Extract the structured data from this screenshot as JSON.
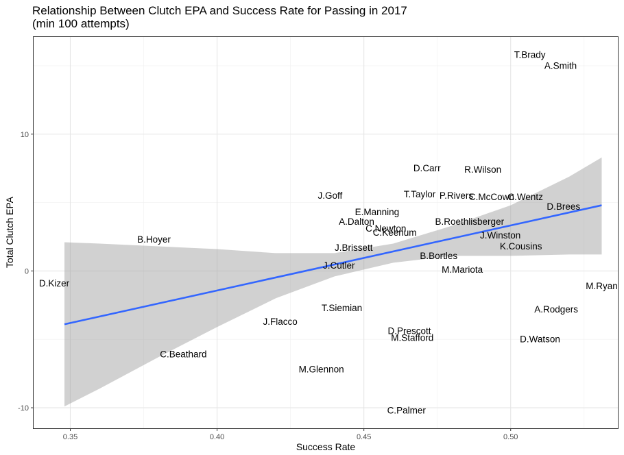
{
  "chart_data": {
    "type": "scatter",
    "title": "Relationship Between Clutch EPA and Success Rate for Passing in 2017",
    "subtitle": "(min 100 attempts)",
    "xlabel": "Success Rate",
    "ylabel": "Total Clutch EPA",
    "xlim": [
      0.3375,
      0.5365
    ],
    "ylim": [
      -11.5,
      17.1
    ],
    "x_ticks": [
      0.35,
      0.4,
      0.45,
      0.5
    ],
    "x_tick_labels": [
      "0.35",
      "0.40",
      "0.45",
      "0.50"
    ],
    "y_ticks": [
      -10,
      0,
      10
    ],
    "y_tick_labels": [
      "-10",
      "0",
      "10"
    ],
    "grid": true,
    "legend": "none",
    "point_marker": "text label",
    "points": [
      {
        "label": "T.Brady",
        "x": 0.5065,
        "y": 15.8
      },
      {
        "label": "A.Smith",
        "x": 0.517,
        "y": 15.0
      },
      {
        "label": "R.Wilson",
        "x": 0.4905,
        "y": 7.4
      },
      {
        "label": "D.Carr",
        "x": 0.4715,
        "y": 7.5
      },
      {
        "label": "J.Goff",
        "x": 0.4385,
        "y": 5.5
      },
      {
        "label": "T.Taylor",
        "x": 0.469,
        "y": 5.6
      },
      {
        "label": "P.Rivers",
        "x": 0.4815,
        "y": 5.5
      },
      {
        "label": "C.McCown",
        "x": 0.4935,
        "y": 5.4
      },
      {
        "label": "C.Wentz",
        "x": 0.505,
        "y": 5.4
      },
      {
        "label": "D.Brees",
        "x": 0.518,
        "y": 4.7
      },
      {
        "label": "E.Manning",
        "x": 0.4545,
        "y": 4.3
      },
      {
        "label": "A.Dalton",
        "x": 0.4475,
        "y": 3.6
      },
      {
        "label": "C.Newton",
        "x": 0.4575,
        "y": 3.1
      },
      {
        "label": "C.Keenum",
        "x": 0.4605,
        "y": 2.8
      },
      {
        "label": "B.Roethlisberger",
        "x": 0.486,
        "y": 3.6
      },
      {
        "label": "J.Winston",
        "x": 0.4965,
        "y": 2.6
      },
      {
        "label": "K.Cousins",
        "x": 0.5035,
        "y": 1.8
      },
      {
        "label": "B.Hoyer",
        "x": 0.3785,
        "y": 2.3
      },
      {
        "label": "J.Brissett",
        "x": 0.4465,
        "y": 1.7
      },
      {
        "label": "B.Bortles",
        "x": 0.4755,
        "y": 1.1
      },
      {
        "label": "J.Cutler",
        "x": 0.4415,
        "y": 0.4
      },
      {
        "label": "M.Mariota",
        "x": 0.4835,
        "y": 0.1
      },
      {
        "label": "D.Kizer",
        "x": 0.3445,
        "y": -0.9
      },
      {
        "label": "M.Ryan",
        "x": 0.531,
        "y": -1.1
      },
      {
        "label": "T.Siemian",
        "x": 0.4425,
        "y": -2.7
      },
      {
        "label": "A.Rodgers",
        "x": 0.5155,
        "y": -2.8
      },
      {
        "label": "J.Flacco",
        "x": 0.4215,
        "y": -3.7
      },
      {
        "label": "D.Prescott",
        "x": 0.4655,
        "y": -4.4
      },
      {
        "label": "M.Stafford",
        "x": 0.4665,
        "y": -4.9
      },
      {
        "label": "D.Watson",
        "x": 0.51,
        "y": -5.0
      },
      {
        "label": "C.Beathard",
        "x": 0.3885,
        "y": -6.1
      },
      {
        "label": "M.Glennon",
        "x": 0.4355,
        "y": -7.2
      },
      {
        "label": "C.Palmer",
        "x": 0.4645,
        "y": -10.2
      }
    ],
    "trend_line": {
      "method": "lm",
      "color": "#3366ff",
      "x": [
        0.348,
        0.531
      ],
      "y": [
        -3.9,
        4.8
      ]
    },
    "confidence_band": {
      "color": "#999999",
      "x": [
        0.348,
        0.36,
        0.38,
        0.4,
        0.42,
        0.44,
        0.46,
        0.48,
        0.5,
        0.52,
        0.531
      ],
      "upper": [
        2.1,
        2.0,
        1.8,
        1.6,
        1.3,
        1.3,
        2.0,
        3.3,
        4.8,
        6.9,
        8.3
      ],
      "lower": [
        -9.9,
        -8.6,
        -6.3,
        -4.1,
        -2.0,
        -0.4,
        0.6,
        1.1,
        1.1,
        1.2,
        1.2
      ]
    }
  }
}
